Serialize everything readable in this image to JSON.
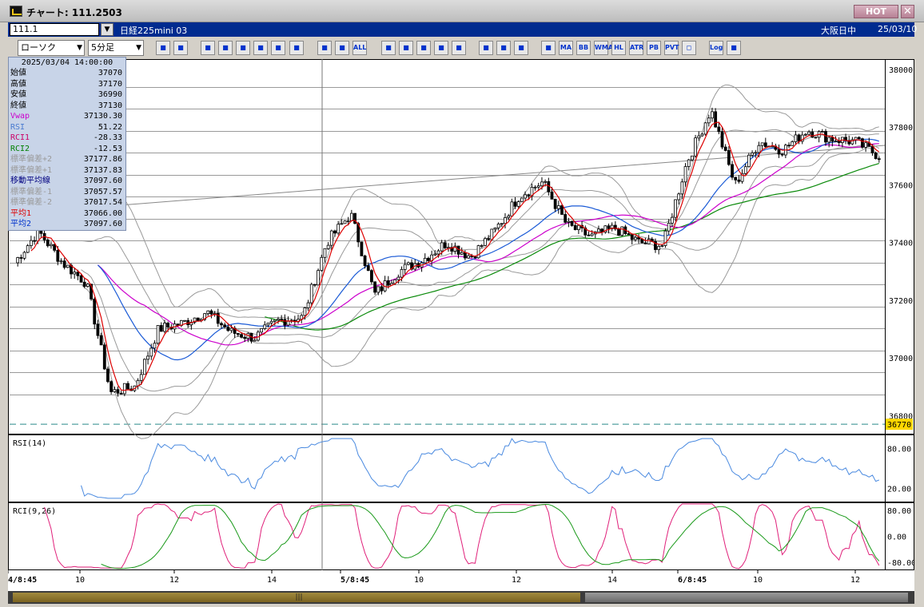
{
  "window": {
    "title": "チャート: 111.2503",
    "hot_label": "HOT",
    "close_label": "✕"
  },
  "instrument": {
    "code": "111.1",
    "name": "日経225mini 03",
    "market": "大阪日中",
    "date": "25/03/10"
  },
  "toolbar": {
    "chart_type": "ローソク",
    "interval": "5分足",
    "buttons": [
      "zoom",
      "layout",
      "draw",
      "line",
      "cursor",
      "arrow",
      "save",
      "delete",
      "bar-a",
      "bar-b",
      "ALL",
      "bull",
      "search",
      "grid",
      "marks",
      "blank",
      "tool1",
      "wrench",
      "palette",
      "trend",
      "MA",
      "BB",
      "WMA",
      "HL",
      "ATR",
      "PB",
      "PVT",
      "O",
      "Log",
      "setting"
    ]
  },
  "ohlc_panel": {
    "timestamp": "2025/03/04 14:00:00",
    "rows": [
      {
        "label": "始値",
        "value": "37070",
        "color": "#000000"
      },
      {
        "label": "高値",
        "value": "37170",
        "color": "#000000"
      },
      {
        "label": "安値",
        "value": "36990",
        "color": "#000000"
      },
      {
        "label": "終値",
        "value": "37130",
        "color": "#000000"
      },
      {
        "label": "Vwap",
        "value": "37130.30",
        "color": "#cc00cc"
      },
      {
        "label": "RSI",
        "value": "51.22",
        "color": "#4a7bd0"
      },
      {
        "label": "RCI1",
        "value": "-28.33",
        "color": "#cc0066"
      },
      {
        "label": "RCI2",
        "value": "-12.53",
        "color": "#008000"
      },
      {
        "label": "標準偏差+2",
        "value": "37177.86",
        "color": "#9a9a9a"
      },
      {
        "label": "標準偏差+1",
        "value": "37137.83",
        "color": "#9a9a9a"
      },
      {
        "label": "移動平均線",
        "value": "37097.60",
        "color": "#000080"
      },
      {
        "label": "標準偏差-1",
        "value": "37057.57",
        "color": "#9a9a9a"
      },
      {
        "label": "標準偏差-2",
        "value": "37017.54",
        "color": "#9a9a9a"
      },
      {
        "label": "平均1",
        "value": "37066.00",
        "color": "#dd0000"
      },
      {
        "label": "平均2",
        "value": "37097.60",
        "color": "#0033cc"
      }
    ]
  },
  "chart_data": [
    {
      "type": "candlestick",
      "ylim": [
        36740,
        38030
      ],
      "y_ticks": [
        38000,
        37800,
        37600,
        37400,
        37200,
        37000,
        36800
      ],
      "price_marker": 36770,
      "x_ticks": [
        "4/8:45",
        "10",
        "12",
        "14",
        "5/8:45",
        "10",
        "12",
        "14",
        "6/8:45",
        "10",
        "12"
      ],
      "anchors": [
        37330,
        37440,
        37330,
        37260,
        36880,
        36900,
        37100,
        37120,
        37160,
        37090,
        37070,
        37130,
        37140,
        37400,
        37500,
        37220,
        37300,
        37340,
        37400,
        37350,
        37440,
        37560,
        37610,
        37460,
        37420,
        37450,
        37400,
        37390,
        37680,
        37860,
        37600,
        37750,
        37720,
        37790,
        37760,
        37750,
        37700
      ]
    },
    {
      "type": "line",
      "title": "RSI(14)",
      "y_ticks": [
        80.0,
        20.0
      ]
    },
    {
      "type": "line",
      "title": "RCI(9,26)",
      "y_ticks": [
        80.0,
        0.0,
        -80.0
      ]
    }
  ],
  "colors": {
    "candle": "#000000",
    "ma_short": "#dd0000",
    "ma_mid": "#1a5ad6",
    "ma_long": "#0a8a0a",
    "vwap": "#cc00cc",
    "band": "#9a9a9a",
    "rsi": "#4a8ae0",
    "rci_fast": "#e0207a",
    "rci_slow": "#1a9a1a",
    "marker": "#ffd700"
  }
}
